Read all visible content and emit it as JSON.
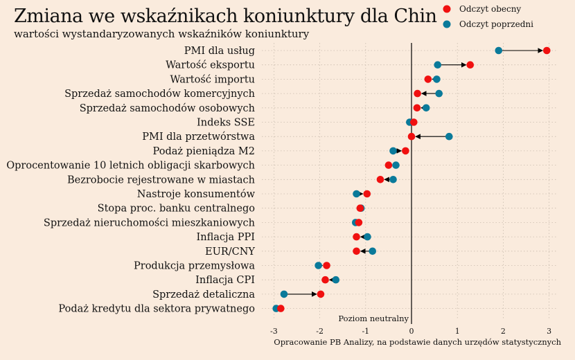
{
  "title": "Zmiana we wskaźnikach koniunktury dla Chin",
  "subtitle": "wartości wystandaryzowanych wskaźników koniunktury",
  "colors": {
    "background": "#faebdd",
    "current": "#f01010",
    "previous": "#0a7a9a",
    "arrow": "#000000"
  },
  "chart_data": {
    "type": "dumbbell",
    "title": "Zmiana we wskaźnikach koniunktury dla Chin",
    "subtitle": "wartości wystandaryzowanych wskaźników koniunktury",
    "xlim": [
      -3.2,
      3.4
    ],
    "xticks": [
      -3,
      -2,
      -1,
      0,
      1,
      2,
      3
    ],
    "xtick_labels": [
      "-3",
      "-2",
      "-1",
      "0",
      "1",
      "2",
      "3"
    ],
    "grid": true,
    "legend_position": "top-right",
    "series": [
      {
        "name": "Odczyt obecny",
        "color": "#f01010"
      },
      {
        "name": "Odczyt poprzedni",
        "color": "#0a7a9a"
      }
    ],
    "vline_label": "Poziom neutralny",
    "source_note": "Opracowanie PB Analizy, na podstawie danych urzędów statystycznych",
    "categories": [
      "PMI dla usług",
      "Wartość eksportu",
      "Wartość importu",
      "Sprzedaż samochodów komercyjnych",
      "Sprzedaż samochodów osobowych",
      "Indeks SSE",
      "PMI dla przetwórstwa",
      "Podaż pieniądza M2",
      "Oprocentowanie 10 letnich obligacji skarbowych",
      "Bezrobocie rejestrowane w miastach",
      "Nastroje konsumentów",
      "Stopa proc. banku centralnego",
      "Sprzedaż nieruchomości mieszkaniowych",
      "Inflacja PPI",
      "EUR/CNY",
      "Produkcja przemysłowa",
      "Inflacja CPI",
      "Sprzedaż detaliczna",
      "Podaż kredytu dla sektora prywatnego"
    ],
    "current": [
      2.95,
      1.28,
      0.36,
      0.13,
      0.12,
      0.05,
      0.0,
      -0.13,
      -0.5,
      -0.68,
      -0.97,
      -1.12,
      -1.15,
      -1.2,
      -1.2,
      -1.85,
      -1.88,
      -1.98,
      -2.85
    ],
    "previous": [
      1.9,
      0.57,
      0.55,
      0.6,
      0.32,
      -0.04,
      0.82,
      -0.4,
      -0.34,
      -0.4,
      -1.2,
      -1.1,
      -1.22,
      -0.96,
      -0.85,
      -2.03,
      -1.65,
      -2.78,
      -2.95
    ]
  }
}
